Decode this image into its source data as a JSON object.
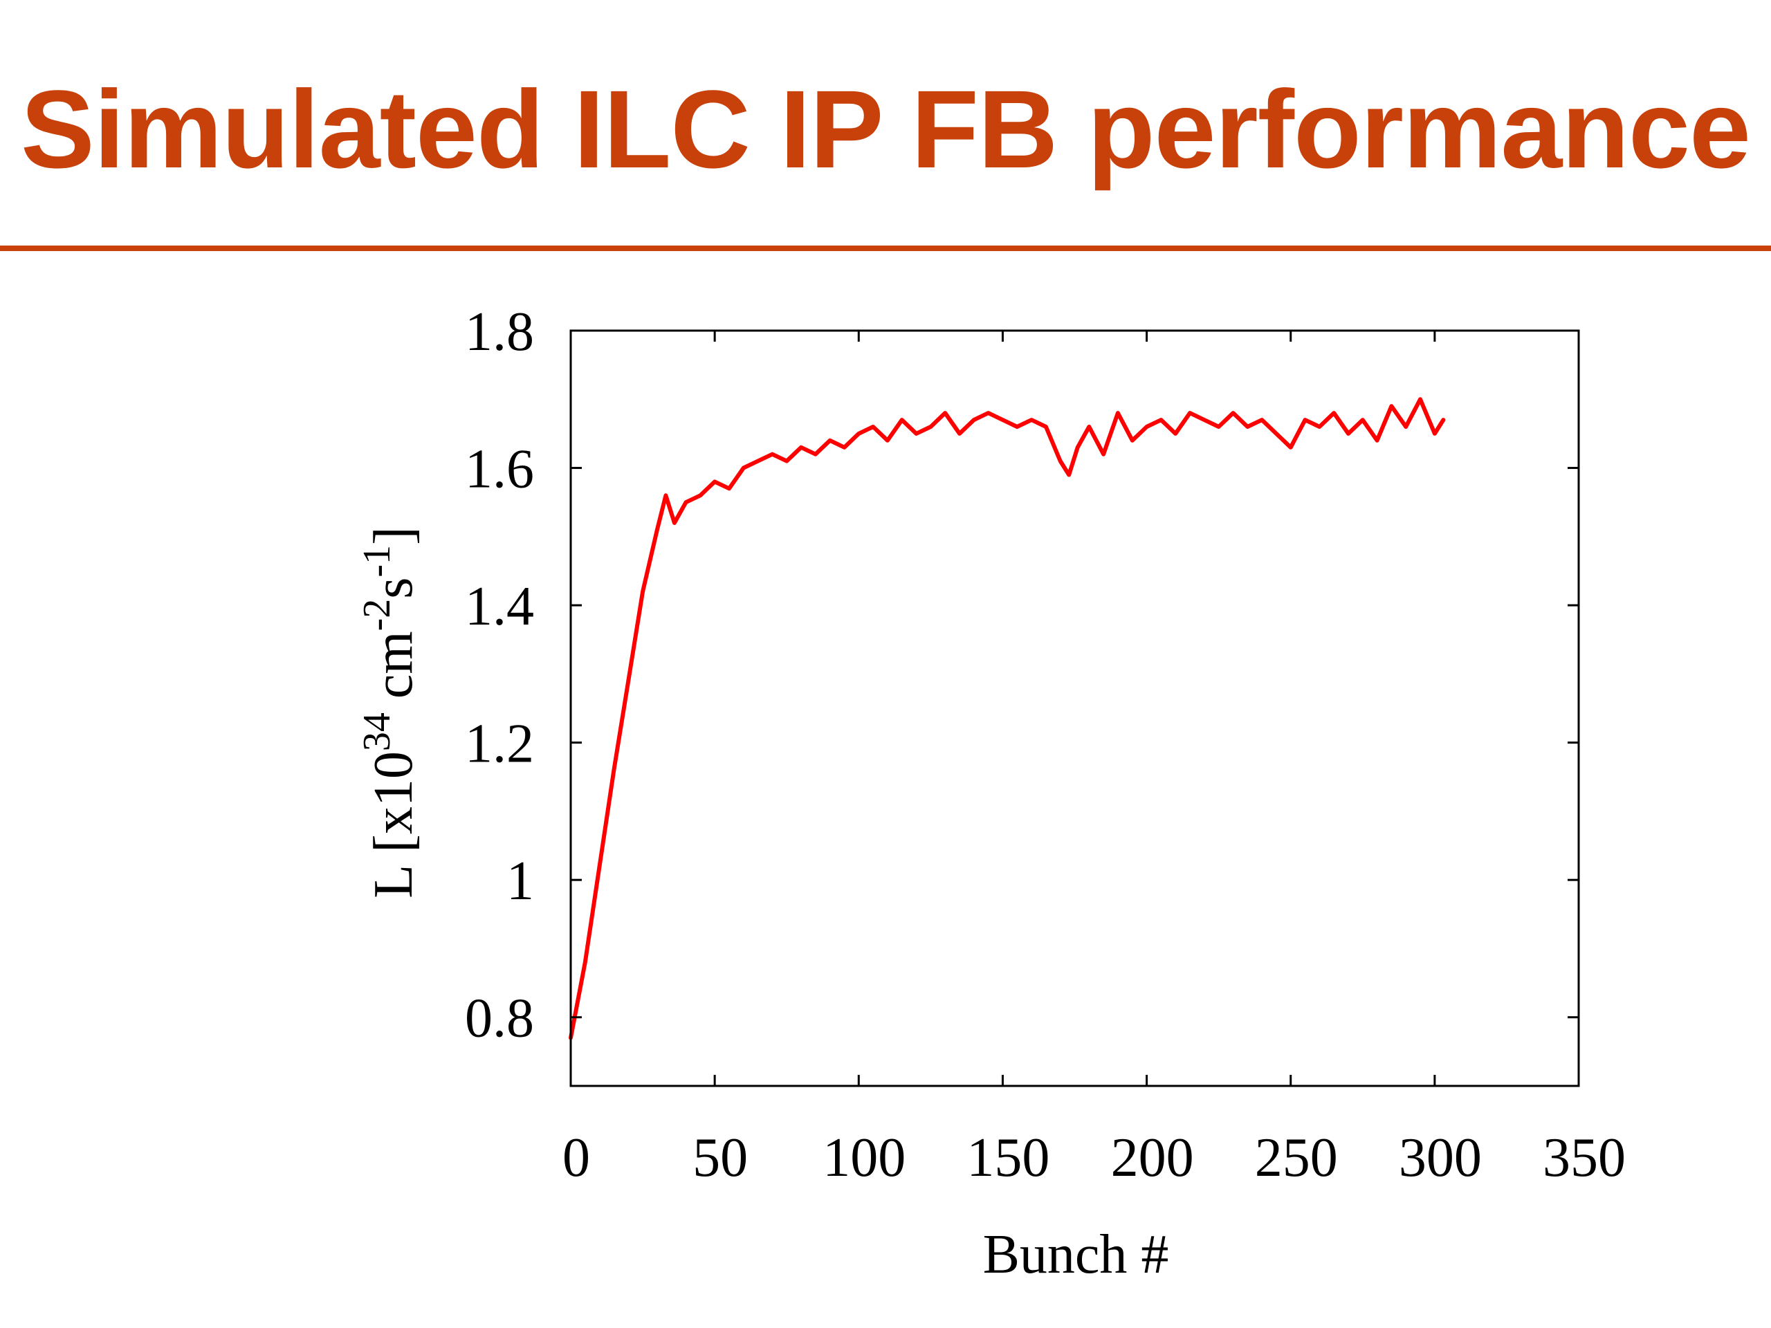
{
  "slide": {
    "title": "Simulated ILC IP FB performance"
  },
  "colors": {
    "title": "#c8400a",
    "rule": "#c8400a",
    "series": "#ff0000",
    "axes": "#000000"
  },
  "chart_data": {
    "type": "line",
    "title": "",
    "xlabel": "Bunch #",
    "ylabel_parts": [
      "L [x10",
      "34",
      " cm",
      "-2",
      "s",
      "-1",
      "]"
    ],
    "xlim": [
      0,
      350
    ],
    "ylim": [
      0.7,
      1.8
    ],
    "xticks": [
      0,
      50,
      100,
      150,
      200,
      250,
      300,
      350
    ],
    "xtick_labels": [
      "0",
      "50",
      "100",
      "150",
      "200",
      "250",
      "300",
      "350"
    ],
    "yticks": [
      0.8,
      1.0,
      1.2,
      1.4,
      1.6,
      1.8
    ],
    "ytick_labels": [
      "0.8",
      "1",
      "1.2",
      "1.4",
      "1.6",
      "1.8"
    ],
    "grid": false,
    "legend": "none",
    "series": [
      {
        "x": [
          0,
          5,
          10,
          15,
          20,
          25,
          30,
          33,
          36,
          40,
          45,
          50,
          55,
          60,
          65,
          70,
          75,
          80,
          85,
          90,
          95,
          100,
          105,
          110,
          115,
          120,
          125,
          130,
          135,
          140,
          145,
          150,
          155,
          160,
          165,
          170,
          173,
          176,
          180,
          185,
          190,
          195,
          200,
          205,
          210,
          215,
          220,
          225,
          230,
          235,
          240,
          245,
          250,
          255,
          260,
          265,
          270,
          275,
          280,
          285,
          290,
          295,
          300,
          303
        ],
        "values": [
          0.77,
          0.88,
          1.02,
          1.16,
          1.29,
          1.42,
          1.51,
          1.56,
          1.52,
          1.55,
          1.56,
          1.58,
          1.57,
          1.6,
          1.61,
          1.62,
          1.61,
          1.63,
          1.62,
          1.64,
          1.63,
          1.65,
          1.66,
          1.64,
          1.67,
          1.65,
          1.66,
          1.68,
          1.65,
          1.67,
          1.68,
          1.67,
          1.66,
          1.67,
          1.66,
          1.61,
          1.59,
          1.63,
          1.66,
          1.62,
          1.68,
          1.64,
          1.66,
          1.67,
          1.65,
          1.68,
          1.67,
          1.66,
          1.68,
          1.66,
          1.67,
          1.65,
          1.63,
          1.67,
          1.66,
          1.68,
          1.65,
          1.67,
          1.64,
          1.69,
          1.66,
          1.7,
          1.65,
          1.67
        ]
      }
    ]
  }
}
